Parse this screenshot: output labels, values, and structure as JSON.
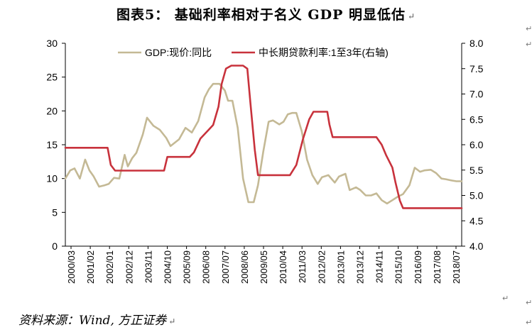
{
  "title": "图表5：  基础利率相对于名义 GDP 明显低估",
  "source": "资料来源：Wind, 方正证券",
  "paragraph_mark": "↵",
  "chart_data": {
    "type": "line",
    "title": "图表5：  基础利率相对于名义 GDP 明显低估",
    "x_tick_labels": [
      "2000/03",
      "2001/02",
      "2002/01",
      "2002/12",
      "2003/11",
      "2004/10",
      "2005/09",
      "2006/08",
      "2007/07",
      "2008/06",
      "2009/05",
      "2010/04",
      "2011/03",
      "2012/02",
      "2013/01",
      "2013/12",
      "2014/11",
      "2015/10",
      "2016/09",
      "2017/08",
      "2018/07"
    ],
    "x_range": [
      2000.17,
      2018.75
    ],
    "y_left": {
      "range": [
        0,
        30
      ],
      "ticks": [
        "0",
        "5",
        "10",
        "15",
        "20",
        "25",
        "30"
      ]
    },
    "y_right": {
      "range": [
        4.0,
        8.0
      ],
      "ticks": [
        "4.0",
        "4.5",
        "5.0",
        "5.5",
        "6.0",
        "6.5",
        "7.0",
        "7.5",
        "8.0"
      ]
    },
    "legend_position": "top-center",
    "series": [
      {
        "name": "GDP:现价:同比",
        "axis": "left",
        "color": "#c4b995",
        "x": [
          2000.17,
          2000.4,
          2000.6,
          2000.85,
          2001.1,
          2001.3,
          2001.5,
          2001.75,
          2002.0,
          2002.2,
          2002.45,
          2002.7,
          2002.95,
          2003.1,
          2003.3,
          2003.5,
          2003.8,
          2004.0,
          2004.3,
          2004.6,
          2004.9,
          2005.1,
          2005.5,
          2005.8,
          2006.1,
          2006.4,
          2006.7,
          2006.9,
          2007.1,
          2007.4,
          2007.65,
          2007.8,
          2008.0,
          2008.25,
          2008.5,
          2008.75,
          2009.0,
          2009.2,
          2009.45,
          2009.7,
          2009.9,
          2010.2,
          2010.4,
          2010.6,
          2010.8,
          2011.0,
          2011.25,
          2011.5,
          2011.75,
          2012.0,
          2012.2,
          2012.5,
          2012.8,
          2013.0,
          2013.3,
          2013.5,
          2013.8,
          2014.0,
          2014.25,
          2014.5,
          2014.75,
          2015.0,
          2015.25,
          2015.5,
          2015.75,
          2016.0,
          2016.3,
          2016.55,
          2016.8,
          2017.0,
          2017.3,
          2017.55,
          2017.8,
          2018.0,
          2018.3,
          2018.5,
          2018.75
        ],
        "values": [
          10.0,
          11.2,
          11.5,
          10.0,
          12.8,
          11.2,
          10.3,
          8.8,
          9.0,
          9.2,
          10.1,
          10.0,
          13.5,
          11.8,
          13.0,
          13.8,
          16.5,
          19.0,
          17.8,
          17.2,
          16.0,
          14.8,
          15.8,
          17.5,
          16.8,
          18.5,
          22.0,
          23.2,
          24.0,
          24.0,
          23.0,
          21.5,
          21.5,
          17.5,
          10.0,
          6.5,
          6.5,
          9.0,
          14.0,
          18.4,
          18.6,
          18.0,
          18.4,
          19.5,
          19.7,
          19.7,
          17.0,
          12.8,
          10.5,
          9.2,
          10.2,
          10.5,
          9.4,
          10.3,
          10.7,
          8.3,
          8.7,
          8.3,
          7.5,
          7.5,
          7.8,
          6.8,
          6.3,
          6.8,
          7.3,
          7.7,
          9.0,
          11.6,
          11.0,
          11.2,
          11.3,
          10.8,
          10.0,
          9.9,
          9.7,
          9.6,
          9.6
        ]
      },
      {
        "name": "中长期贷款利率:1至3年(右轴)",
        "axis": "right",
        "color": "#c8323c",
        "x": [
          2000.17,
          2001.9,
          2002.05,
          2002.15,
          2002.3,
          2002.5,
          2003.0,
          2004.0,
          2004.6,
          2004.8,
          2004.95,
          2005.5,
          2006.0,
          2006.2,
          2006.5,
          2006.9,
          2007.1,
          2007.35,
          2007.5,
          2007.7,
          2007.95,
          2008.2,
          2008.5,
          2008.7,
          2008.85,
          2009.05,
          2009.2,
          2010.5,
          2010.7,
          2011.0,
          2011.3,
          2011.6,
          2011.8,
          2012.2,
          2012.45,
          2012.55,
          2012.7,
          2013.0,
          2014.5,
          2014.75,
          2015.0,
          2015.2,
          2015.5,
          2015.65,
          2015.85,
          2016.0,
          2016.5,
          2018.75
        ],
        "values": [
          5.94,
          5.94,
          5.94,
          5.94,
          5.6,
          5.49,
          5.49,
          5.49,
          5.49,
          5.49,
          5.76,
          5.76,
          5.76,
          5.85,
          6.12,
          6.3,
          6.39,
          6.75,
          7.2,
          7.5,
          7.56,
          7.56,
          7.56,
          7.5,
          6.8,
          5.9,
          5.4,
          5.4,
          5.4,
          5.6,
          6.1,
          6.5,
          6.65,
          6.65,
          6.65,
          6.4,
          6.15,
          6.15,
          6.15,
          6.15,
          6.0,
          5.8,
          5.55,
          5.25,
          4.9,
          4.75,
          4.75,
          4.75
        ]
      }
    ]
  }
}
